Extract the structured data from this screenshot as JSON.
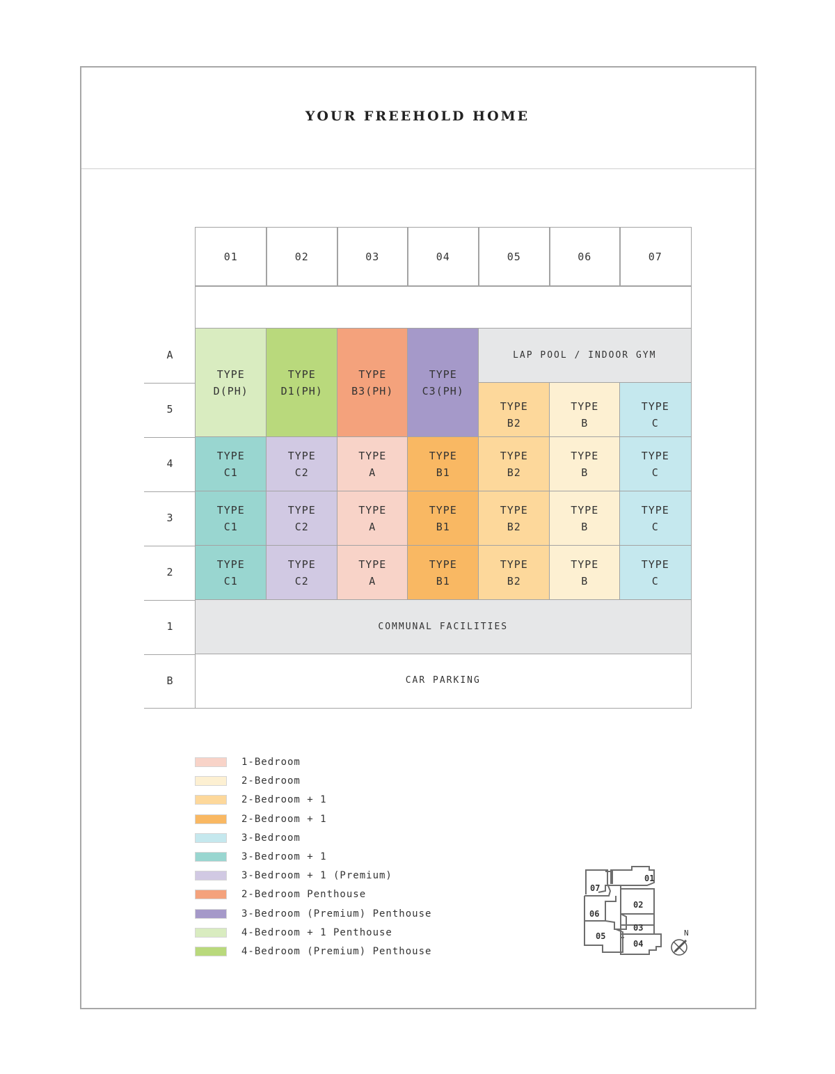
{
  "title": "YOUR FREEHOLD HOME",
  "columns": [
    "01",
    "02",
    "03",
    "04",
    "05",
    "06",
    "07"
  ],
  "floors": [
    "A",
    "5",
    "4",
    "3",
    "2",
    "1",
    "B"
  ],
  "colors": {
    "1br": "#f8d3c8",
    "2br": "#fdf0d2",
    "2br1": "#fdd89b",
    "2br1b": "#f9b863",
    "3br": "#c5e8ee",
    "3br1": "#99d6d0",
    "3br1p": "#d1c9e3",
    "2ph": "#f4a27c",
    "3pph": "#a599c9",
    "4ph": "#d9ecc0",
    "4pph": "#b9d97c",
    "facility": "#e6e7e8",
    "none": "#ffffff"
  },
  "units": [
    {
      "from": "01",
      "to": "01",
      "floors": [
        "A",
        "5"
      ],
      "label": "TYPE\nD(PH)",
      "color": "4ph"
    },
    {
      "from": "02",
      "to": "02",
      "floors": [
        "A",
        "5"
      ],
      "label": "TYPE\nD1(PH)",
      "color": "4pph"
    },
    {
      "from": "03",
      "to": "03",
      "floors": [
        "A",
        "5"
      ],
      "label": "TYPE\nB3(PH)",
      "color": "2ph"
    },
    {
      "from": "04",
      "to": "04",
      "floors": [
        "A",
        "5"
      ],
      "label": "TYPE\nC3(PH)",
      "color": "3pph"
    },
    {
      "from": "05",
      "to": "07",
      "floors": [
        "A"
      ],
      "label": "LAP POOL / INDOOR GYM",
      "color": "facility",
      "small": true
    },
    {
      "from": "05",
      "to": "05",
      "floors": [
        "5"
      ],
      "label": "TYPE\nB2",
      "color": "2br1",
      "low": true
    },
    {
      "from": "06",
      "to": "06",
      "floors": [
        "5"
      ],
      "label": "TYPE\nB",
      "color": "2br",
      "low": true
    },
    {
      "from": "07",
      "to": "07",
      "floors": [
        "5"
      ],
      "label": "TYPE\nC",
      "color": "3br",
      "low": true
    },
    {
      "from": "01",
      "to": "01",
      "floors": [
        "4"
      ],
      "label": "TYPE\nC1",
      "color": "3br1"
    },
    {
      "from": "02",
      "to": "02",
      "floors": [
        "4"
      ],
      "label": "TYPE\nC2",
      "color": "3br1p"
    },
    {
      "from": "03",
      "to": "03",
      "floors": [
        "4"
      ],
      "label": "TYPE\nA",
      "color": "1br"
    },
    {
      "from": "04",
      "to": "04",
      "floors": [
        "4"
      ],
      "label": "TYPE\nB1",
      "color": "2br1b"
    },
    {
      "from": "05",
      "to": "05",
      "floors": [
        "4"
      ],
      "label": "TYPE\nB2",
      "color": "2br1"
    },
    {
      "from": "06",
      "to": "06",
      "floors": [
        "4"
      ],
      "label": "TYPE\nB",
      "color": "2br"
    },
    {
      "from": "07",
      "to": "07",
      "floors": [
        "4"
      ],
      "label": "TYPE\nC",
      "color": "3br"
    },
    {
      "from": "01",
      "to": "01",
      "floors": [
        "3"
      ],
      "label": "TYPE\nC1",
      "color": "3br1"
    },
    {
      "from": "02",
      "to": "02",
      "floors": [
        "3"
      ],
      "label": "TYPE\nC2",
      "color": "3br1p"
    },
    {
      "from": "03",
      "to": "03",
      "floors": [
        "3"
      ],
      "label": "TYPE\nA",
      "color": "1br"
    },
    {
      "from": "04",
      "to": "04",
      "floors": [
        "3"
      ],
      "label": "TYPE\nB1",
      "color": "2br1b"
    },
    {
      "from": "05",
      "to": "05",
      "floors": [
        "3"
      ],
      "label": "TYPE\nB2",
      "color": "2br1"
    },
    {
      "from": "06",
      "to": "06",
      "floors": [
        "3"
      ],
      "label": "TYPE\nB",
      "color": "2br"
    },
    {
      "from": "07",
      "to": "07",
      "floors": [
        "3"
      ],
      "label": "TYPE\nC",
      "color": "3br"
    },
    {
      "from": "01",
      "to": "01",
      "floors": [
        "2"
      ],
      "label": "TYPE\nC1",
      "color": "3br1"
    },
    {
      "from": "02",
      "to": "02",
      "floors": [
        "2"
      ],
      "label": "TYPE\nC2",
      "color": "3br1p"
    },
    {
      "from": "03",
      "to": "03",
      "floors": [
        "2"
      ],
      "label": "TYPE\nA",
      "color": "1br"
    },
    {
      "from": "04",
      "to": "04",
      "floors": [
        "2"
      ],
      "label": "TYPE\nB1",
      "color": "2br1b"
    },
    {
      "from": "05",
      "to": "05",
      "floors": [
        "2"
      ],
      "label": "TYPE\nB2",
      "color": "2br1"
    },
    {
      "from": "06",
      "to": "06",
      "floors": [
        "2"
      ],
      "label": "TYPE\nB",
      "color": "2br"
    },
    {
      "from": "07",
      "to": "07",
      "floors": [
        "2"
      ],
      "label": "TYPE\nC",
      "color": "3br"
    },
    {
      "from": "01",
      "to": "07",
      "floors": [
        "1"
      ],
      "label": "COMMUNAL FACILITIES",
      "color": "facility",
      "small": true
    },
    {
      "from": "01",
      "to": "07",
      "floors": [
        "B"
      ],
      "label": "CAR PARKING",
      "color": "none",
      "small": true
    }
  ],
  "legend": [
    {
      "label": "1-Bedroom",
      "color": "#f8d3c8"
    },
    {
      "label": "2-Bedroom",
      "color": "#fdf0d2"
    },
    {
      "label": "2-Bedroom + 1",
      "color": "#fdd89b"
    },
    {
      "label": "2-Bedroom + 1",
      "color": "#f9b863"
    },
    {
      "label": "3-Bedroom",
      "color": "#c5e8ee"
    },
    {
      "label": "3-Bedroom + 1",
      "color": "#99d6d0"
    },
    {
      "label": "3-Bedroom + 1 (Premium)",
      "color": "#d1c9e3"
    },
    {
      "label": "2-Bedroom Penthouse",
      "color": "#f4a27c"
    },
    {
      "label": "3-Bedroom (Premium) Penthouse",
      "color": "#a599c9"
    },
    {
      "label": "4-Bedroom + 1 Penthouse",
      "color": "#d9ecc0"
    },
    {
      "label": "4-Bedroom (Premium) Penthouse",
      "color": "#b9d97c"
    }
  ],
  "site_plan": {
    "units": [
      "01",
      "02",
      "03",
      "04",
      "05",
      "06",
      "07"
    ],
    "north_label": "N",
    "compass_icon": "north-arrow-icon"
  }
}
